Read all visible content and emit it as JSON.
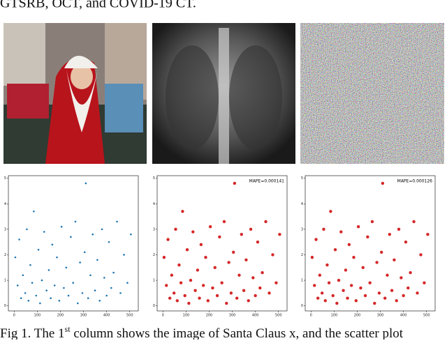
{
  "header": {
    "text": "GTSRB, OCT, and COVID-19 CT."
  },
  "chart_data": [
    {
      "type": "scatter",
      "color": "#1f77b4",
      "x": [
        5,
        15,
        22,
        30,
        38,
        48,
        55,
        62,
        70,
        78,
        85,
        95,
        105,
        112,
        120,
        130,
        140,
        150,
        158,
        165,
        175,
        185,
        195,
        205,
        215,
        225,
        235,
        245,
        255,
        265,
        275,
        285,
        295,
        305,
        310,
        320,
        330,
        340,
        350,
        360,
        370,
        380,
        390,
        400,
        410,
        420,
        430,
        445,
        460,
        475,
        490,
        505
      ],
      "values": [
        1.9,
        0.8,
        2.6,
        0.3,
        1.2,
        0.5,
        3.0,
        0.2,
        1.6,
        0.9,
        3.7,
        0.4,
        2.2,
        0.1,
        1.0,
        2.9,
        0.6,
        1.4,
        0.3,
        2.4,
        0.8,
        1.9,
        0.2,
        3.1,
        0.7,
        1.5,
        0.4,
        2.7,
        0.9,
        3.3,
        0.1,
        1.7,
        0.5,
        2.1,
        4.8,
        0.3,
        1.2,
        2.8,
        0.6,
        1.8,
        0.2,
        3.0,
        1.1,
        0.4,
        2.5,
        0.7,
        1.3,
        3.3,
        0.5,
        2.0,
        0.9,
        2.8
      ],
      "xlim": [
        -25,
        537
      ],
      "ylim": [
        -0.2,
        5.1
      ],
      "xticks": [
        0,
        100,
        200,
        300,
        400,
        500
      ],
      "yticks": [
        0,
        1,
        2,
        3,
        4,
        5
      ]
    },
    {
      "type": "scatter",
      "color": "#d62728",
      "annotation": "MAPE=0.000141",
      "x": [
        5,
        15,
        22,
        30,
        38,
        48,
        55,
        62,
        70,
        78,
        85,
        95,
        105,
        112,
        120,
        130,
        140,
        150,
        158,
        165,
        175,
        185,
        195,
        205,
        215,
        225,
        235,
        245,
        255,
        265,
        275,
        285,
        295,
        305,
        310,
        320,
        330,
        340,
        350,
        360,
        370,
        380,
        390,
        400,
        410,
        420,
        430,
        445,
        460,
        475,
        490,
        505
      ],
      "values": [
        1.9,
        0.8,
        2.6,
        0.3,
        1.2,
        0.5,
        3.0,
        0.2,
        1.6,
        0.9,
        3.7,
        0.4,
        2.2,
        0.1,
        1.0,
        2.9,
        0.6,
        1.4,
        0.3,
        2.4,
        0.8,
        1.9,
        0.2,
        3.1,
        0.7,
        1.5,
        0.4,
        2.7,
        0.9,
        3.3,
        0.1,
        1.7,
        0.5,
        2.1,
        4.8,
        0.3,
        1.2,
        2.8,
        0.6,
        1.8,
        0.2,
        3.0,
        1.1,
        0.4,
        2.5,
        0.7,
        1.3,
        3.3,
        0.5,
        2.0,
        0.9,
        2.8
      ],
      "xlim": [
        -25,
        537
      ],
      "ylim": [
        -0.2,
        5.1
      ],
      "xticks": [
        0,
        100,
        200,
        300,
        400,
        500
      ],
      "yticks": [
        0,
        1,
        2,
        3,
        4,
        5
      ]
    },
    {
      "type": "scatter",
      "color": "#d62728",
      "annotation": "MAPE=0.000126",
      "x": [
        5,
        15,
        22,
        30,
        38,
        48,
        55,
        62,
        70,
        78,
        85,
        95,
        105,
        112,
        120,
        130,
        140,
        150,
        158,
        165,
        175,
        185,
        195,
        205,
        215,
        225,
        235,
        245,
        255,
        265,
        275,
        285,
        295,
        305,
        310,
        320,
        330,
        340,
        350,
        360,
        370,
        380,
        390,
        400,
        410,
        420,
        430,
        445,
        460,
        475,
        490,
        505
      ],
      "values": [
        1.9,
        0.8,
        2.6,
        0.3,
        1.2,
        0.5,
        3.0,
        0.2,
        1.6,
        0.9,
        3.7,
        0.4,
        2.2,
        0.1,
        1.0,
        2.9,
        0.6,
        1.4,
        0.3,
        2.4,
        0.8,
        1.9,
        0.2,
        3.1,
        0.7,
        1.5,
        0.4,
        2.7,
        0.9,
        3.3,
        0.1,
        1.7,
        0.5,
        2.1,
        4.8,
        0.3,
        1.2,
        2.8,
        0.6,
        1.8,
        0.2,
        3.0,
        1.1,
        0.4,
        2.5,
        0.7,
        1.3,
        3.3,
        0.5,
        2.0,
        0.9,
        2.8
      ],
      "xlim": [
        -25,
        537
      ],
      "ylim": [
        -0.2,
        5.1
      ],
      "xticks": [
        0,
        100,
        200,
        300,
        400,
        500
      ],
      "yticks": [
        0,
        1,
        2,
        3,
        4,
        5
      ]
    }
  ],
  "caption": {
    "lead": "Fig 1. The 1",
    "sup": "st",
    "rest": " column shows the image of Santa Claus x, and the scatter plot"
  }
}
